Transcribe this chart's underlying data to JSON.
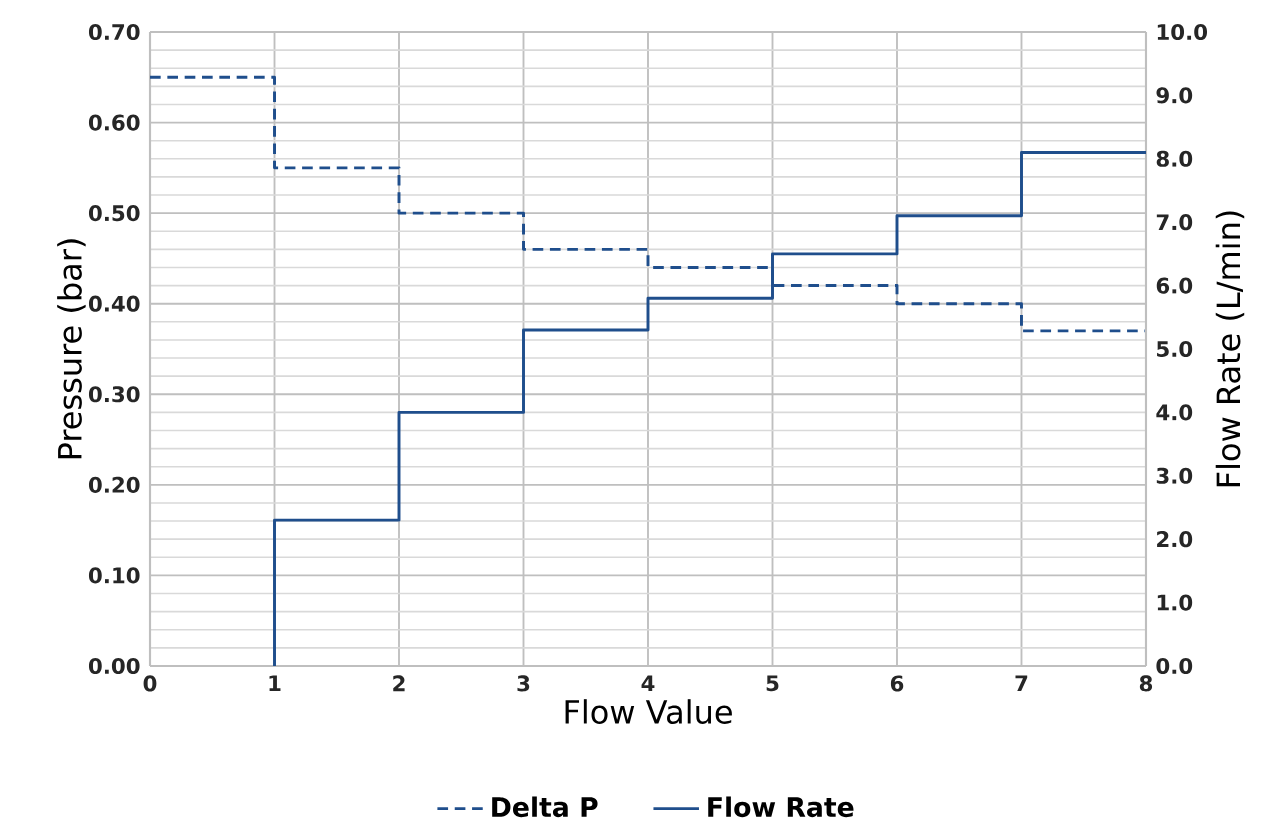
{
  "chart_data": {
    "type": "step",
    "xlabel": "Flow Value",
    "ylabel": "Pressure (bar)",
    "y2label": "Flow Rate (L/min)",
    "xlim": [
      0,
      8
    ],
    "xticks": [
      0,
      1,
      2,
      3,
      4,
      5,
      6,
      7,
      8
    ],
    "ylim": [
      0,
      0.7
    ],
    "yticks": [
      {
        "value": 0,
        "label": "0.00"
      },
      {
        "value": 0.1,
        "label": "0.10"
      },
      {
        "value": 0.2,
        "label": "0.20"
      },
      {
        "value": 0.3,
        "label": "0.30"
      },
      {
        "value": 0.4,
        "label": "0.40"
      },
      {
        "value": 0.5,
        "label": "0.50"
      },
      {
        "value": 0.6,
        "label": "0.60"
      },
      {
        "value": 0.7,
        "label": "0.70"
      }
    ],
    "y2lim": [
      0,
      10
    ],
    "y2ticks": [
      {
        "value": 0,
        "label": "0.0"
      },
      {
        "value": 1,
        "label": "1.0"
      },
      {
        "value": 2,
        "label": "2.0"
      },
      {
        "value": 3,
        "label": "3.0"
      },
      {
        "value": 4,
        "label": "4.0"
      },
      {
        "value": 5,
        "label": "5.0"
      },
      {
        "value": 6,
        "label": "6.0"
      },
      {
        "value": 7,
        "label": "7.0"
      },
      {
        "value": 8,
        "label": "8.0"
      },
      {
        "value": 9,
        "label": "9.0"
      },
      {
        "value": 10,
        "label": "10.0"
      }
    ],
    "grid": true,
    "legend": "bottom",
    "series": [
      {
        "name": "Delta P",
        "color": "#1f4e8c",
        "line_style": "dashed",
        "x": [
          0,
          1,
          2,
          3,
          4,
          5,
          6,
          7,
          8
        ],
        "values": [
          0.65,
          0.55,
          0.5,
          0.46,
          0.44,
          0.42,
          0.4,
          0.37,
          0.37
        ]
      },
      {
        "name": "Flow Rate",
        "color": "#1f4e8c",
        "line_style": "solid",
        "axis": "y2",
        "x": [
          1,
          1,
          2,
          3,
          4,
          5,
          6,
          7,
          8
        ],
        "values": [
          0,
          2.3,
          4.0,
          5.3,
          5.8,
          6.5,
          7.1,
          8.1,
          8.1
        ]
      }
    ]
  }
}
